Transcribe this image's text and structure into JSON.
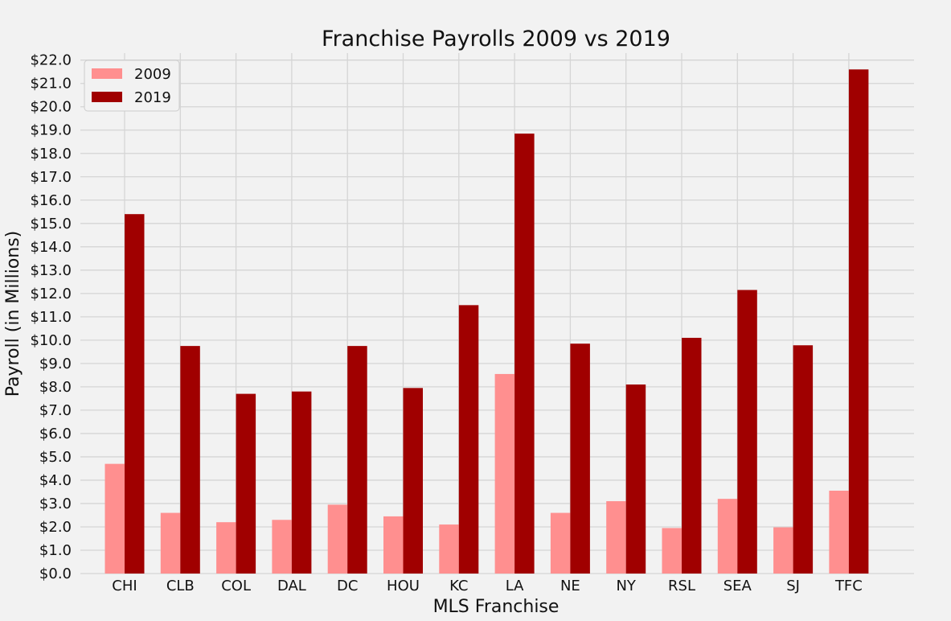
{
  "chart_data": {
    "type": "bar",
    "title": "Franchise Payrolls 2009 vs 2019",
    "xlabel": "MLS Franchise",
    "ylabel": "Payroll (in Millions)",
    "categories": [
      "CHI",
      "CLB",
      "COL",
      "DAL",
      "DC",
      "HOU",
      "KC",
      "LA",
      "NE",
      "NY",
      "RSL",
      "SEA",
      "SJ",
      "TFC"
    ],
    "series": [
      {
        "name": "2009",
        "color": "#ff8f8f",
        "values": [
          4.7,
          2.6,
          2.2,
          2.3,
          2.95,
          2.45,
          2.1,
          8.55,
          2.6,
          3.1,
          1.95,
          3.2,
          1.98,
          3.55
        ]
      },
      {
        "name": "2019",
        "color": "#a00000",
        "values": [
          15.4,
          9.75,
          7.7,
          7.8,
          9.75,
          7.95,
          11.5,
          18.85,
          9.85,
          8.1,
          10.1,
          12.15,
          9.78,
          21.6
        ]
      }
    ],
    "ylim": [
      0,
      22.3
    ],
    "yticks": [
      "$0.0",
      "$1.0",
      "$2.0",
      "$3.0",
      "$4.0",
      "$5.0",
      "$6.0",
      "$7.0",
      "$8.0",
      "$9.0",
      "$10.0",
      "$11.0",
      "$12.0",
      "$13.0",
      "$14.0",
      "$15.0",
      "$16.0",
      "$17.0",
      "$18.0",
      "$19.0",
      "$20.0",
      "$21.0",
      "$22.0"
    ],
    "grid": true,
    "legend": "top-left"
  }
}
